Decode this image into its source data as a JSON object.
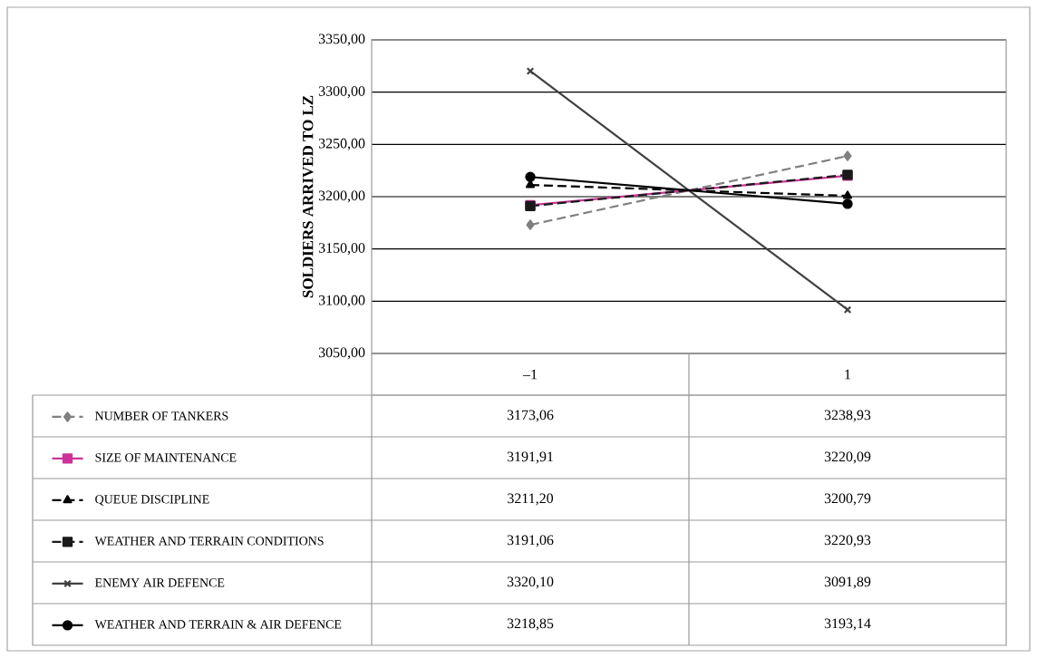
{
  "chart_data": {
    "type": "line",
    "ylabel": "SOLDIERS ARRIVED TO LZ",
    "categories": [
      "–1",
      "1"
    ],
    "ylim": [
      3050,
      3350
    ],
    "yticks": [
      {
        "value": 3050,
        "label": "3050,00"
      },
      {
        "value": 3100,
        "label": "3100,00"
      },
      {
        "value": 3150,
        "label": "3150,00"
      },
      {
        "value": 3200,
        "label": "3200,00"
      },
      {
        "value": 3250,
        "label": "3250,00"
      },
      {
        "value": 3300,
        "label": "3300,00"
      },
      {
        "value": 3350,
        "label": "3350,00"
      }
    ],
    "grid": "y",
    "legend": "bottom",
    "series": [
      {
        "name": "NUMBER OF TANKERS",
        "color": "#808080",
        "marker": "diamond",
        "line_style": "dashed",
        "values": [
          3173.06,
          3238.93
        ],
        "value_labels": [
          "3173,06",
          "3238,93"
        ]
      },
      {
        "name": "SIZE OF MAINTENANCE",
        "color": "#cc3399",
        "marker": "square",
        "line_style": "solid",
        "values": [
          3191.91,
          3220.09
        ],
        "value_labels": [
          "3191,91",
          "3220,09"
        ]
      },
      {
        "name": "QUEUE DISCIPLINE",
        "color": "#000000",
        "marker": "triangle",
        "line_style": "dashed",
        "values": [
          3211.2,
          3200.79
        ],
        "value_labels": [
          "3211,20",
          "3200,79"
        ]
      },
      {
        "name": "WEATHER AND TERRAIN CONDITIONS",
        "color": "#1a1a1a",
        "marker": "square",
        "line_style": "dashed",
        "values": [
          3191.06,
          3220.93
        ],
        "value_labels": [
          "3191,06",
          "3220,93"
        ]
      },
      {
        "name": "ENEMY AIR DEFENCE",
        "color": "#404040",
        "marker": "cross",
        "line_style": "solid",
        "values": [
          3320.1,
          3091.89
        ],
        "value_labels": [
          "3320,10",
          "3091,89"
        ]
      },
      {
        "name": "WEATHER AND TERRAIN & AIR DEFENCE",
        "color": "#000000",
        "marker": "circle",
        "line_style": "solid",
        "values": [
          3218.85,
          3193.14
        ],
        "value_labels": [
          "3218,85",
          "3193,14"
        ]
      }
    ]
  }
}
